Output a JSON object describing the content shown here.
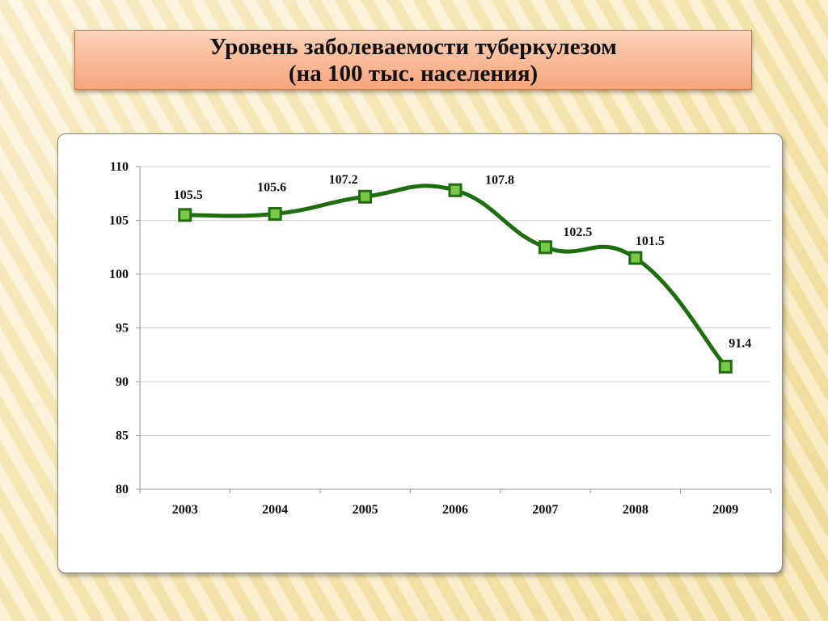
{
  "title": {
    "line1": "Уровень заболеваемости туберкулезом",
    "line2": "(на 100 тыс. населения)"
  },
  "chart_data": {
    "type": "line",
    "categories": [
      "2003",
      "2004",
      "2005",
      "2006",
      "2007",
      "2008",
      "2009"
    ],
    "series": [
      {
        "values": [
          105.5,
          105.6,
          107.2,
          107.8,
          102.5,
          101.5,
          91.4
        ],
        "color": "#1e6e0f",
        "marker_fill": "#7cc94a",
        "smooth": true
      }
    ],
    "data_labels": [
      "105.5",
      "105.6",
      "107.2",
      "107.8",
      "102.5",
      "101.5",
      "91.4"
    ],
    "ylim": [
      80,
      110
    ],
    "yticks": [
      80,
      85,
      90,
      95,
      100,
      105,
      110
    ],
    "grid": true,
    "legend": "none"
  }
}
